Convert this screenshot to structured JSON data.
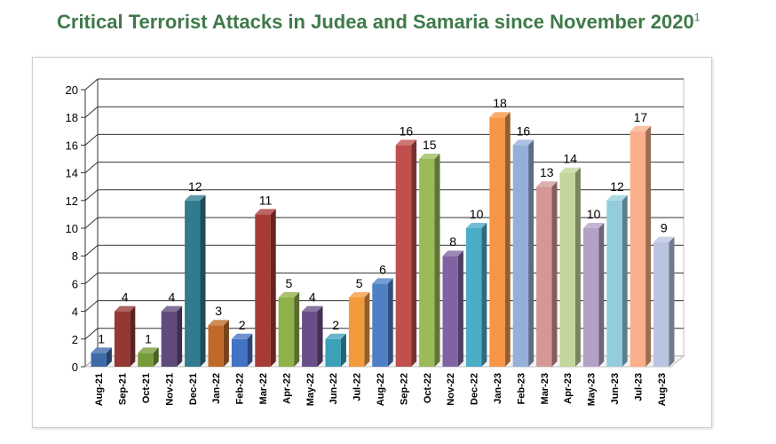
{
  "title": "Critical Terrorist Attacks in Judea and Samaria since November 2020",
  "title_footnote": "1",
  "colors": {
    "title": "#3f7a4a",
    "gridline": "#333333"
  },
  "chart_data": {
    "type": "bar",
    "title": "Critical Terrorist Attacks in Judea and Samaria since November 2020",
    "xlabel": "",
    "ylabel": "",
    "ylim": [
      0,
      20
    ],
    "yticks": [
      0,
      2,
      4,
      6,
      8,
      10,
      12,
      14,
      16,
      18,
      20
    ],
    "grid": true,
    "categories": [
      "Aug-21",
      "Sep-21",
      "Oct-21",
      "Nov-21",
      "Dec-21",
      "Jan-22",
      "Feb-22",
      "Mar-22",
      "Apr-22",
      "May-22",
      "Jun-22",
      "Jul-22",
      "Aug-22",
      "Sep-22",
      "Oct-22",
      "Nov-22",
      "Dec-22",
      "Jan-23",
      "Feb-23",
      "Mar-23",
      "Apr-23",
      "May-23",
      "Jun-23",
      "Jul-23",
      "Aug-23"
    ],
    "values": [
      1,
      4,
      1,
      4,
      12,
      3,
      2,
      11,
      5,
      4,
      2,
      5,
      6,
      16,
      15,
      8,
      10,
      18,
      16,
      13,
      14,
      10,
      12,
      17,
      9
    ],
    "bar_colors": [
      "#3f6aa8",
      "#953835",
      "#779a3a",
      "#604a7b",
      "#317b8f",
      "#c06a2a",
      "#4472c4",
      "#a83a36",
      "#8fb14a",
      "#6a4e8a",
      "#3ca0b8",
      "#f39a3c",
      "#4e80c5",
      "#c0504d",
      "#9bbb59",
      "#8064a2",
      "#4bacc6",
      "#f79646",
      "#95b0d8",
      "#d49796",
      "#c3d69b",
      "#b3a2c7",
      "#93cddd",
      "#fab08a",
      "#b9c4e0"
    ]
  }
}
